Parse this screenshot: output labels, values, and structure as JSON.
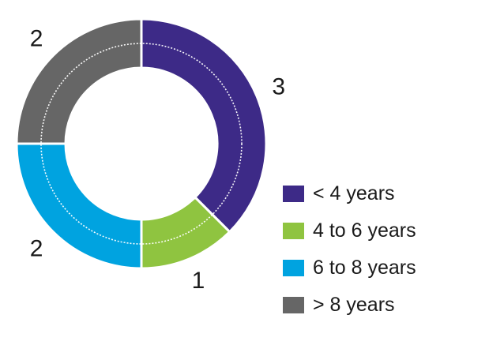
{
  "chart_data": {
    "type": "pie",
    "variant": "donut",
    "title": "",
    "categories": [
      "< 4 years",
      "4 to 6 years",
      "6 to 8 years",
      "> 8 years"
    ],
    "values": [
      3,
      1,
      2,
      2
    ],
    "data_labels": [
      "3",
      "1",
      "2",
      "2"
    ],
    "colors": [
      "#3d2a87",
      "#8fc440",
      "#00a3e0",
      "#666666"
    ],
    "legend_position": "bottom-right",
    "start_angle": "12 o'clock",
    "direction": "clockwise"
  }
}
